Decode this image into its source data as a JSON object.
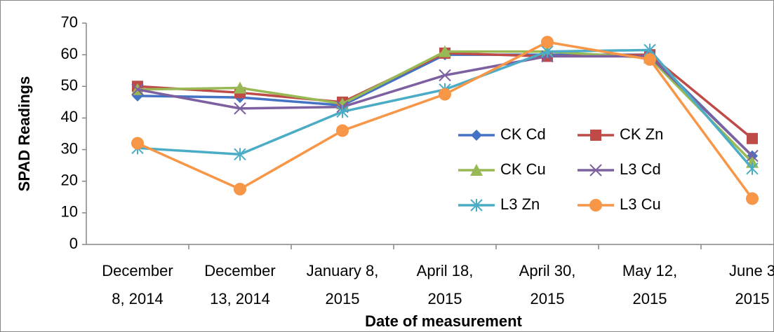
{
  "chart_data": {
    "type": "line",
    "x_label": "Date of measurement",
    "y_label": "SPAD Readings",
    "categories": [
      "December\n8, 2014",
      "December\n13, 2014",
      "January 8,\n2015",
      "April 18,\n2015",
      "April 30,\n2015",
      "May 12,\n2015",
      "June 3\n2015"
    ],
    "ylim": [
      0,
      70
    ],
    "yticks": [
      0,
      10,
      20,
      30,
      40,
      50,
      60,
      70
    ],
    "grid": false,
    "legend": "center-right",
    "series": [
      {
        "name": "CK Cd",
        "color": "#4472c4",
        "marker": "diamond",
        "values": [
          47,
          46.5,
          44,
          60,
          60,
          60,
          28
        ]
      },
      {
        "name": "CK Zn",
        "color": "#be4b48",
        "marker": "square",
        "values": [
          50,
          48,
          45,
          60.5,
          59.5,
          60,
          33.5
        ]
      },
      {
        "name": "CK Cu",
        "color": "#98b954",
        "marker": "triangle",
        "values": [
          49,
          49.5,
          44.5,
          61,
          61,
          59,
          26
        ]
      },
      {
        "name": "L3 Cd",
        "color": "#7d60a0",
        "marker": "x",
        "values": [
          49,
          43,
          43.5,
          53.5,
          59.5,
          59.5,
          28
        ]
      },
      {
        "name": "L3 Zn",
        "color": "#4bacc6",
        "marker": "star",
        "values": [
          30.5,
          28.5,
          42,
          49,
          61,
          61.5,
          24
        ]
      },
      {
        "name": "L3 Cu",
        "color": "#f79646",
        "marker": "circle",
        "values": [
          32,
          17.5,
          36,
          47.5,
          64,
          58.5,
          14.5
        ]
      }
    ]
  }
}
